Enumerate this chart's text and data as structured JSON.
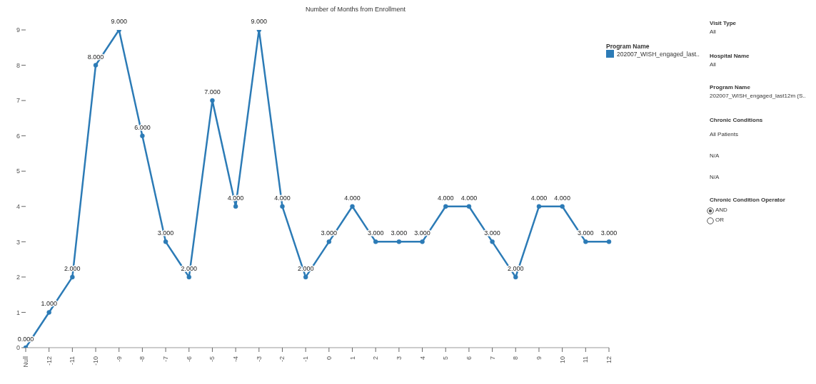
{
  "chart_data": {
    "type": "line",
    "xlabel": "Number of Months from Enrollment",
    "categories": [
      "Null",
      "-12",
      "-11",
      "-10",
      "-9",
      "-8",
      "-7",
      "-6",
      "-5",
      "-4",
      "-3",
      "-2",
      "-1",
      "0",
      "1",
      "2",
      "3",
      "4",
      "5",
      "6",
      "7",
      "8",
      "9",
      "10",
      "11",
      "12"
    ],
    "series": [
      {
        "name": "202007_WISH_engaged_last..",
        "color": "#2c7bb6",
        "values": [
          0,
          1,
          2,
          8,
          9,
          6,
          3,
          2,
          7,
          4,
          9,
          4,
          2,
          3,
          4,
          3,
          3,
          3,
          4,
          4,
          3,
          2,
          4,
          4,
          3,
          3
        ],
        "value_labels": [
          "0.000",
          "1.000",
          "2.000",
          "8.000",
          "9.000",
          "6.000",
          "3.000",
          "2.000",
          "7.000",
          "4.000",
          "9.000",
          "4.000",
          "2.000",
          "3.000",
          "4.000",
          "3.000",
          "3.000",
          "3.000",
          "4.000",
          "4.000",
          "3.000",
          "2.000",
          "4.000",
          "4.000",
          "3.000",
          "3.000"
        ]
      }
    ],
    "ylim": [
      0,
      9
    ],
    "yticks": [
      0,
      1,
      2,
      3,
      4,
      5,
      6,
      7,
      8,
      9
    ],
    "grid": false,
    "legend": "top right",
    "legend_title": "Program Name",
    "marker": "circle",
    "line_style": "solid",
    "annotations": [
      "Visit Type",
      "All",
      "Hospital Name",
      "All",
      "Program Name",
      "202007_WISH_engaged_last12m (S..",
      "Chronic Conditions",
      "All Patients",
      "N/A",
      "N/A",
      "Chronic Condition Operator",
      "AND",
      "OR"
    ]
  }
}
